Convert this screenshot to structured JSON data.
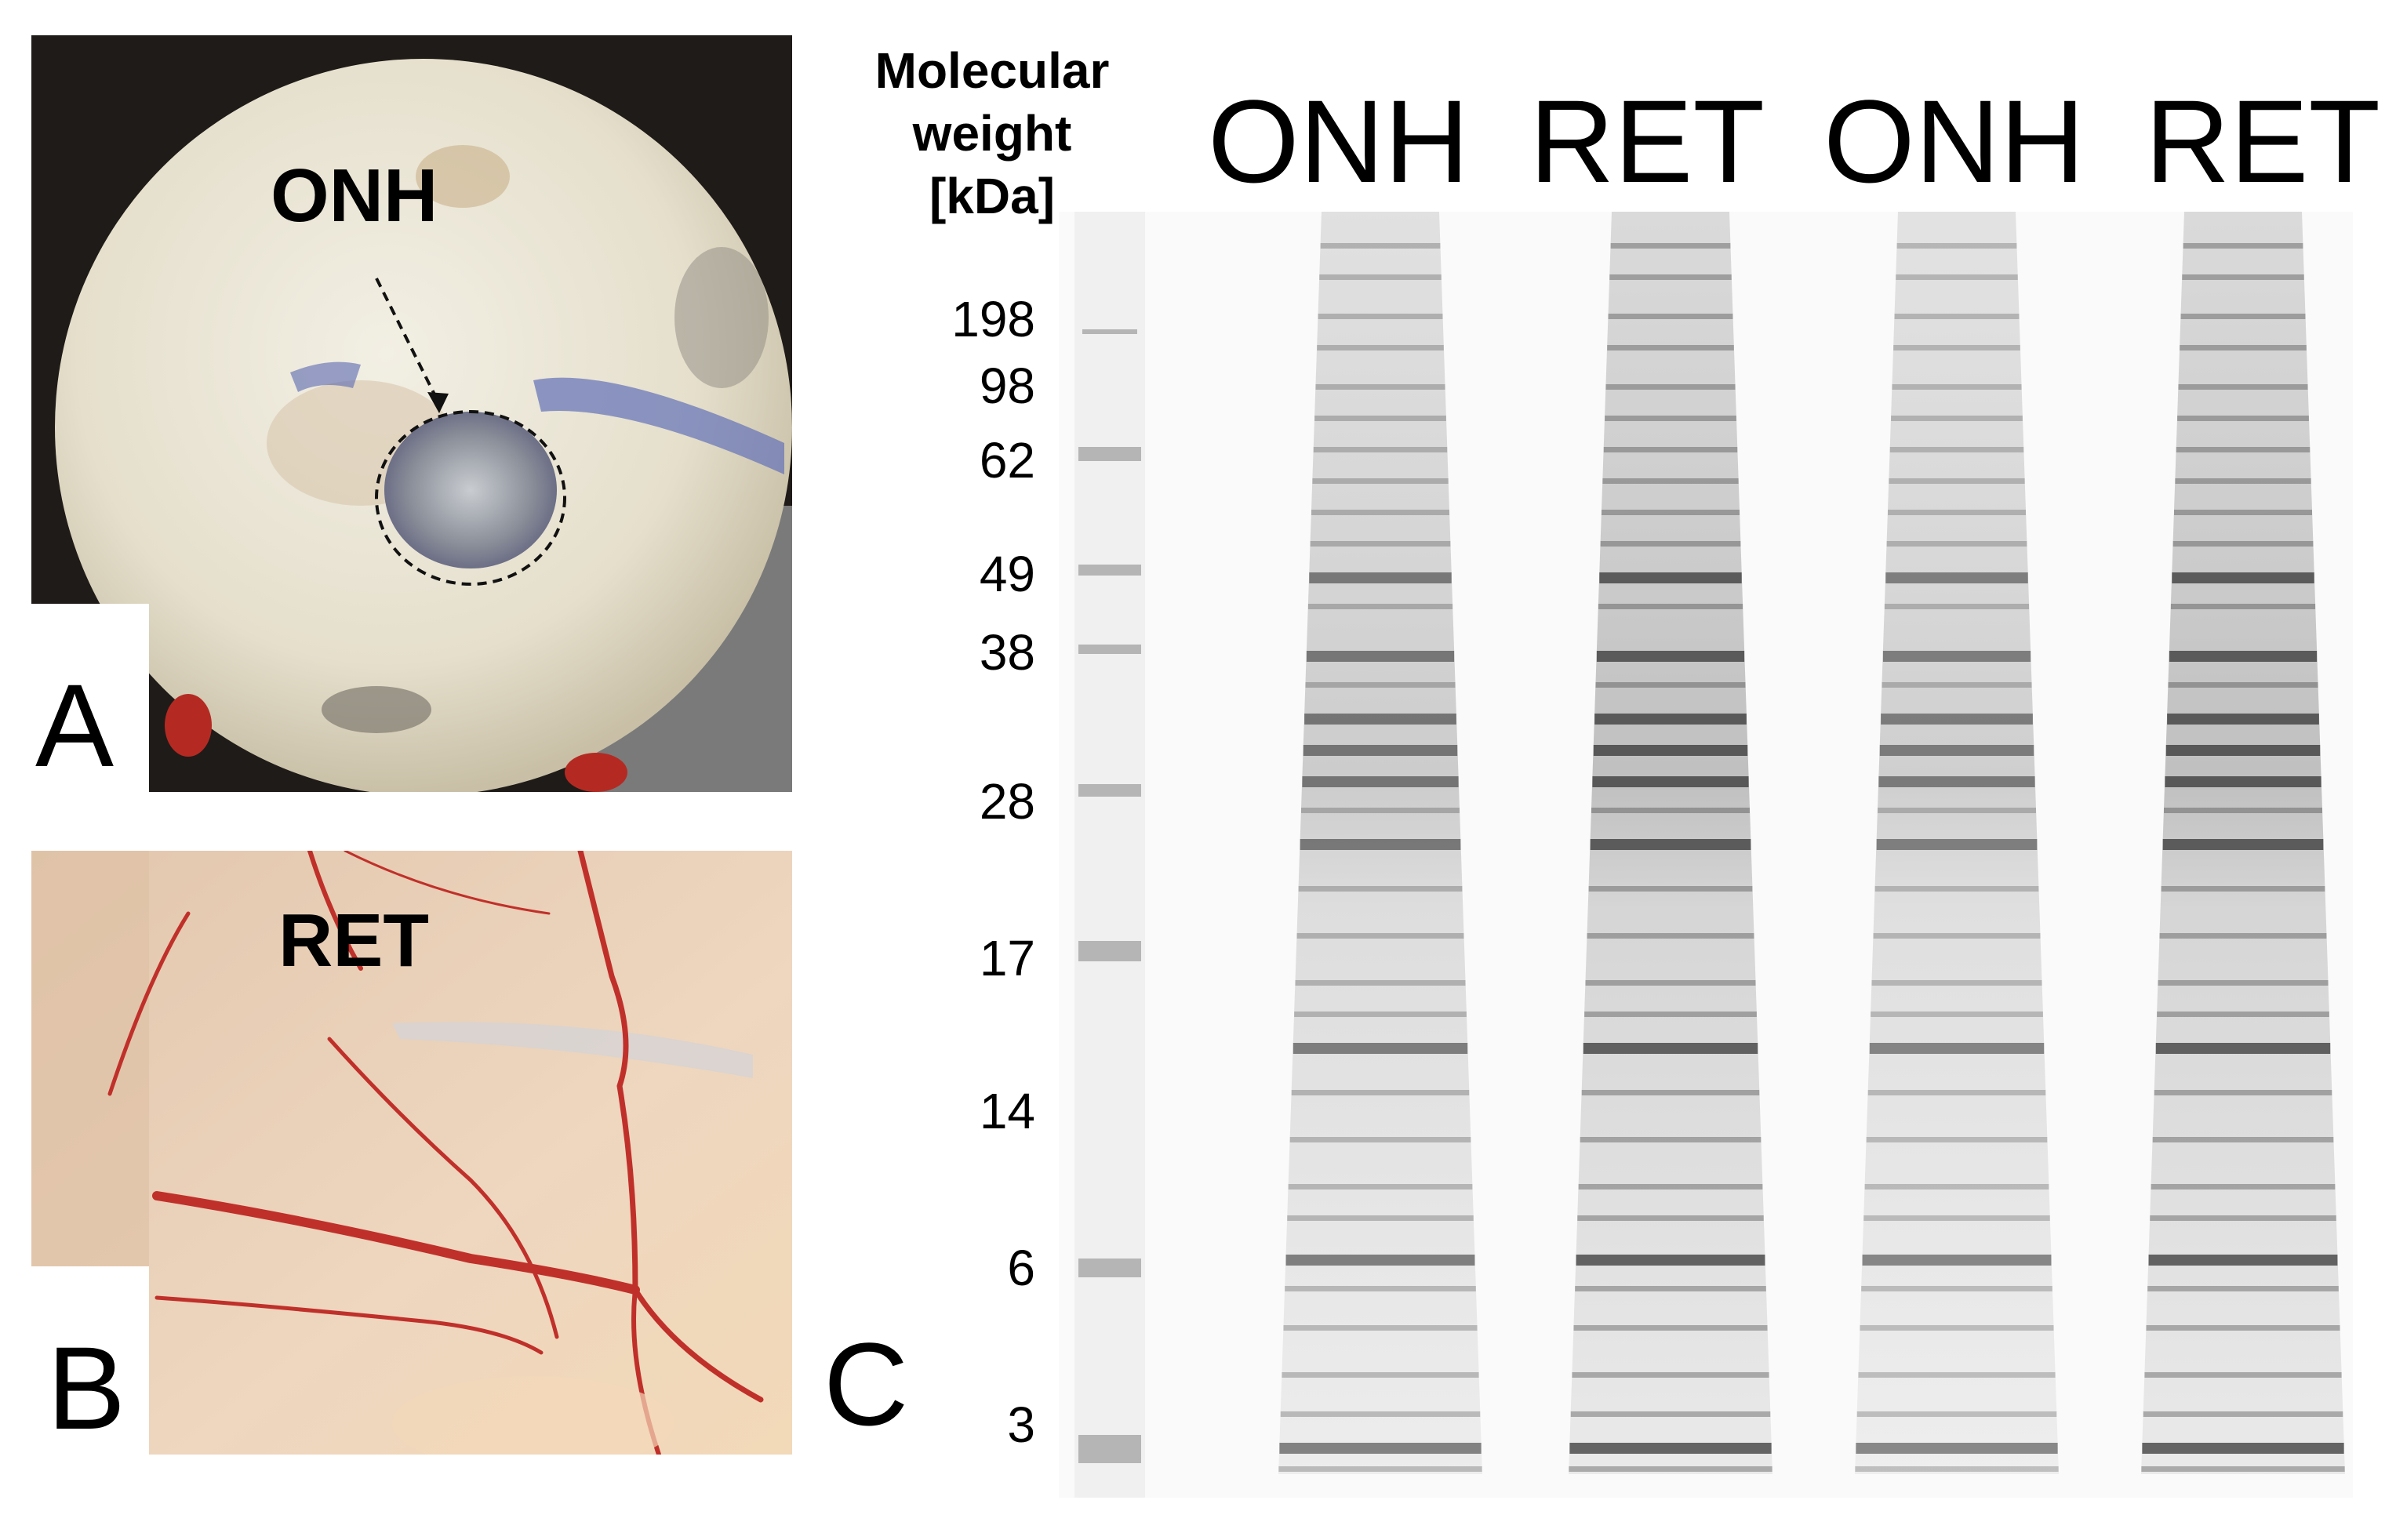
{
  "panels": {
    "a": {
      "letter": "A",
      "tissue_label": "ONH"
    },
    "b": {
      "letter": "B",
      "tissue_label": "RET"
    },
    "c": {
      "letter": "C",
      "mw_title": [
        "Molecular",
        "weight",
        "[kDa]"
      ],
      "markers": [
        "198",
        "98",
        "62",
        "49",
        "38",
        "28",
        "17",
        "14",
        "6",
        "3"
      ],
      "lanes": [
        "ONH",
        "RET",
        "ONH",
        "RET"
      ]
    }
  },
  "colors": {
    "sclera": "#e6e1d2",
    "retina": "#e9cdb3",
    "vessel": "#c0302a",
    "dye": "#5a68b0",
    "gel_band": "#2e2e2e"
  }
}
